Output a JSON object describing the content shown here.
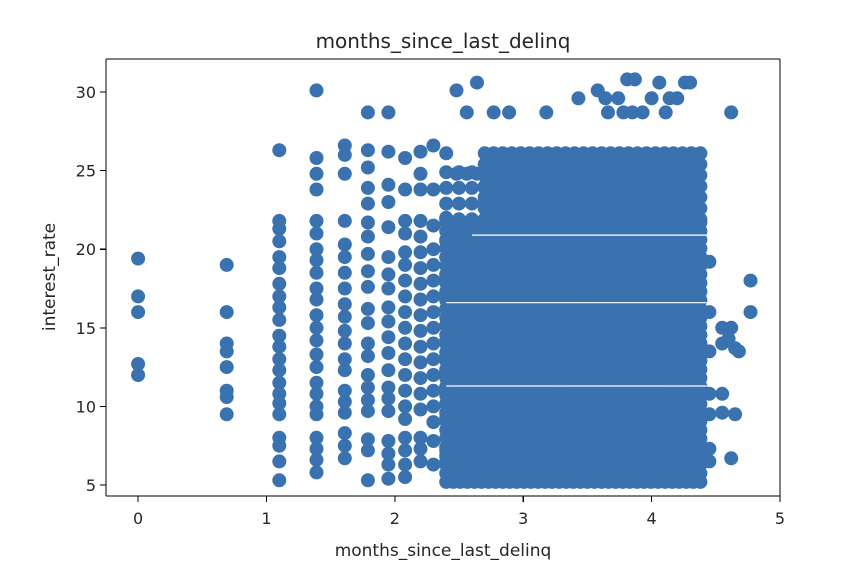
{
  "chart_data": {
    "type": "scatter",
    "title": "months_since_last_delinq",
    "xlabel": "months_since_last_delinq",
    "ylabel": "interest_rate",
    "xlim": [
      -0.25,
      5.0
    ],
    "ylim": [
      4.3,
      32.1
    ],
    "xticks": [
      0,
      1,
      2,
      3,
      4,
      5
    ],
    "yticks": [
      5,
      10,
      15,
      20,
      25,
      30
    ],
    "grid": false,
    "color": "#3a72b0",
    "points": [
      [
        0,
        19.4
      ],
      [
        0,
        17.0
      ],
      [
        0,
        16.0
      ],
      [
        0,
        12.7
      ],
      [
        0,
        12.0
      ],
      [
        0.69,
        19.0
      ],
      [
        0.69,
        16.0
      ],
      [
        0.69,
        14.0
      ],
      [
        0.69,
        13.5
      ],
      [
        0.69,
        12.5
      ],
      [
        0.69,
        11.0
      ],
      [
        0.69,
        10.6
      ],
      [
        0.69,
        9.5
      ],
      [
        1.1,
        26.3
      ],
      [
        1.1,
        21.8
      ],
      [
        1.1,
        21.3
      ],
      [
        1.1,
        20.5
      ],
      [
        1.1,
        19.5
      ],
      [
        1.1,
        18.8
      ],
      [
        1.1,
        17.8
      ],
      [
        1.1,
        17.0
      ],
      [
        1.1,
        16.3
      ],
      [
        1.1,
        15.5
      ],
      [
        1.1,
        14.5
      ],
      [
        1.1,
        13.8
      ],
      [
        1.1,
        13.0
      ],
      [
        1.1,
        12.3
      ],
      [
        1.1,
        11.5
      ],
      [
        1.1,
        10.8
      ],
      [
        1.1,
        10.2
      ],
      [
        1.1,
        9.5
      ],
      [
        1.1,
        8.0
      ],
      [
        1.1,
        7.5
      ],
      [
        1.1,
        6.5
      ],
      [
        1.1,
        5.3
      ],
      [
        1.39,
        30.1
      ],
      [
        1.39,
        25.8
      ],
      [
        1.39,
        24.8
      ],
      [
        1.39,
        23.8
      ],
      [
        1.39,
        21.8
      ],
      [
        1.39,
        21.0
      ],
      [
        1.39,
        20.0
      ],
      [
        1.39,
        19.3
      ],
      [
        1.39,
        18.5
      ],
      [
        1.39,
        17.5
      ],
      [
        1.39,
        16.8
      ],
      [
        1.39,
        15.8
      ],
      [
        1.39,
        15.0
      ],
      [
        1.39,
        14.2
      ],
      [
        1.39,
        13.3
      ],
      [
        1.39,
        12.5
      ],
      [
        1.39,
        11.5
      ],
      [
        1.39,
        10.8
      ],
      [
        1.39,
        10.0
      ],
      [
        1.39,
        9.5
      ],
      [
        1.39,
        8.0
      ],
      [
        1.39,
        7.3
      ],
      [
        1.39,
        6.6
      ],
      [
        1.39,
        5.8
      ],
      [
        1.61,
        26.6
      ],
      [
        1.61,
        26.0
      ],
      [
        1.61,
        24.8
      ],
      [
        1.61,
        21.8
      ],
      [
        1.61,
        20.3
      ],
      [
        1.61,
        19.5
      ],
      [
        1.61,
        18.5
      ],
      [
        1.61,
        17.5
      ],
      [
        1.61,
        16.5
      ],
      [
        1.61,
        15.7
      ],
      [
        1.61,
        14.8
      ],
      [
        1.61,
        14.0
      ],
      [
        1.61,
        13.0
      ],
      [
        1.61,
        12.3
      ],
      [
        1.61,
        11.0
      ],
      [
        1.61,
        10.3
      ],
      [
        1.61,
        9.6
      ],
      [
        1.61,
        8.3
      ],
      [
        1.61,
        7.5
      ],
      [
        1.61,
        6.7
      ],
      [
        1.79,
        28.7
      ],
      [
        1.79,
        26.3
      ],
      [
        1.79,
        25.2
      ],
      [
        1.79,
        23.9
      ],
      [
        1.79,
        22.9
      ],
      [
        1.79,
        21.7
      ],
      [
        1.79,
        20.8
      ],
      [
        1.79,
        19.7
      ],
      [
        1.79,
        18.6
      ],
      [
        1.79,
        17.6
      ],
      [
        1.79,
        16.2
      ],
      [
        1.79,
        15.3
      ],
      [
        1.79,
        14.0
      ],
      [
        1.79,
        13.2
      ],
      [
        1.79,
        12.0
      ],
      [
        1.79,
        11.2
      ],
      [
        1.79,
        10.4
      ],
      [
        1.79,
        9.7
      ],
      [
        1.79,
        7.9
      ],
      [
        1.79,
        7.2
      ],
      [
        1.79,
        5.3
      ],
      [
        1.95,
        28.7
      ],
      [
        1.95,
        26.2
      ],
      [
        1.95,
        24.1
      ],
      [
        1.95,
        23.0
      ],
      [
        1.95,
        21.4
      ],
      [
        1.95,
        19.5
      ],
      [
        1.95,
        18.4
      ],
      [
        1.95,
        17.5
      ],
      [
        1.95,
        16.3
      ],
      [
        1.95,
        15.4
      ],
      [
        1.95,
        14.4
      ],
      [
        1.95,
        13.4
      ],
      [
        1.95,
        12.3
      ],
      [
        1.95,
        11.2
      ],
      [
        1.95,
        10.5
      ],
      [
        1.95,
        9.7
      ],
      [
        1.95,
        7.8
      ],
      [
        1.95,
        7.0
      ],
      [
        1.95,
        6.3
      ],
      [
        1.95,
        5.4
      ],
      [
        2.08,
        25.8
      ],
      [
        2.08,
        23.8
      ],
      [
        2.08,
        21.8
      ],
      [
        2.08,
        21.0
      ],
      [
        2.08,
        19.8
      ],
      [
        2.08,
        19.0
      ],
      [
        2.08,
        18.0
      ],
      [
        2.08,
        17.0
      ],
      [
        2.08,
        16.0
      ],
      [
        2.08,
        15.0
      ],
      [
        2.08,
        14.0
      ],
      [
        2.08,
        13.0
      ],
      [
        2.08,
        12.0
      ],
      [
        2.08,
        11.0
      ],
      [
        2.08,
        10.0
      ],
      [
        2.08,
        9.2
      ],
      [
        2.08,
        8.0
      ],
      [
        2.08,
        7.2
      ],
      [
        2.08,
        6.3
      ],
      [
        2.08,
        5.5
      ],
      [
        2.2,
        26.2
      ],
      [
        2.2,
        24.8
      ],
      [
        2.2,
        23.8
      ],
      [
        2.2,
        21.8
      ],
      [
        2.2,
        20.8
      ],
      [
        2.2,
        19.8
      ],
      [
        2.2,
        18.8
      ],
      [
        2.2,
        17.8
      ],
      [
        2.2,
        16.8
      ],
      [
        2.2,
        15.8
      ],
      [
        2.2,
        14.8
      ],
      [
        2.2,
        13.8
      ],
      [
        2.2,
        12.8
      ],
      [
        2.2,
        11.8
      ],
      [
        2.2,
        10.8
      ],
      [
        2.2,
        9.8
      ],
      [
        2.2,
        8.0
      ],
      [
        2.2,
        7.3
      ],
      [
        2.2,
        6.5
      ],
      [
        2.3,
        26.6
      ],
      [
        2.3,
        23.8
      ],
      [
        2.3,
        21.5
      ],
      [
        2.3,
        20.0
      ],
      [
        2.3,
        19.0
      ],
      [
        2.3,
        18.0
      ],
      [
        2.3,
        17.0
      ],
      [
        2.3,
        16.0
      ],
      [
        2.3,
        15.0
      ],
      [
        2.3,
        14.0
      ],
      [
        2.3,
        13.0
      ],
      [
        2.3,
        12.0
      ],
      [
        2.3,
        11.0
      ],
      [
        2.3,
        10.0
      ],
      [
        2.3,
        9.0
      ],
      [
        2.3,
        7.8
      ],
      [
        2.3,
        6.3
      ],
      [
        2.4,
        26.1
      ],
      [
        2.4,
        22.0
      ],
      [
        2.4,
        20.5
      ],
      [
        2.4,
        19.5
      ],
      [
        2.4,
        18.3
      ],
      [
        2.4,
        17.2
      ],
      [
        2.4,
        16.2
      ],
      [
        2.4,
        15.2
      ],
      [
        2.4,
        14.2
      ],
      [
        2.4,
        13.2
      ],
      [
        2.4,
        12.2
      ],
      [
        2.4,
        11.2
      ],
      [
        2.4,
        10.2
      ],
      [
        2.4,
        9.3
      ],
      [
        2.4,
        8.0
      ],
      [
        2.4,
        7.2
      ],
      [
        2.4,
        6.5
      ],
      [
        2.48,
        30.1
      ],
      [
        2.48,
        24.8
      ],
      [
        2.56,
        28.7
      ],
      [
        2.56,
        24.8
      ],
      [
        2.64,
        30.6
      ],
      [
        2.64,
        24.8
      ],
      [
        2.77,
        28.7
      ],
      [
        2.89,
        28.7
      ],
      [
        3.18,
        28.7
      ],
      [
        3.43,
        29.6
      ],
      [
        3.58,
        30.1
      ],
      [
        3.64,
        29.6
      ],
      [
        3.66,
        28.7
      ],
      [
        3.74,
        29.6
      ],
      [
        3.78,
        28.7
      ],
      [
        3.81,
        30.8
      ],
      [
        3.87,
        30.8
      ],
      [
        3.85,
        28.7
      ],
      [
        3.93,
        28.7
      ],
      [
        4.0,
        29.6
      ],
      [
        4.06,
        30.6
      ],
      [
        4.11,
        28.7
      ],
      [
        4.14,
        29.6
      ],
      [
        4.2,
        29.6
      ],
      [
        4.26,
        30.6
      ],
      [
        4.3,
        30.6
      ],
      [
        4.62,
        28.7
      ],
      [
        4.45,
        19.2
      ],
      [
        4.45,
        16.0
      ],
      [
        4.45,
        13.5
      ],
      [
        4.45,
        10.8
      ],
      [
        4.45,
        9.5
      ],
      [
        4.45,
        7.3
      ],
      [
        4.45,
        6.5
      ],
      [
        4.55,
        15.0
      ],
      [
        4.55,
        14.0
      ],
      [
        4.55,
        10.8
      ],
      [
        4.55,
        9.6
      ],
      [
        4.6,
        14.3
      ],
      [
        4.62,
        15.0
      ],
      [
        4.62,
        6.7
      ],
      [
        4.65,
        13.7
      ],
      [
        4.68,
        13.5
      ],
      [
        4.65,
        9.5
      ],
      [
        4.77,
        18.0
      ],
      [
        4.77,
        16.0
      ]
    ],
    "dense_regions": [
      {
        "x": [
          2.4,
          4.43
        ],
        "y": [
          5.2,
          21.9
        ],
        "step_x": 0.055,
        "step_y": 0.55
      },
      {
        "x": [
          2.7,
          4.43
        ],
        "y": [
          21.9,
          26.6
        ],
        "step_x": 0.07,
        "step_y": 0.7
      },
      {
        "x": [
          2.4,
          2.7
        ],
        "y": [
          21.9,
          25.0
        ],
        "step_x": 0.1,
        "step_y": 1.0
      }
    ]
  }
}
